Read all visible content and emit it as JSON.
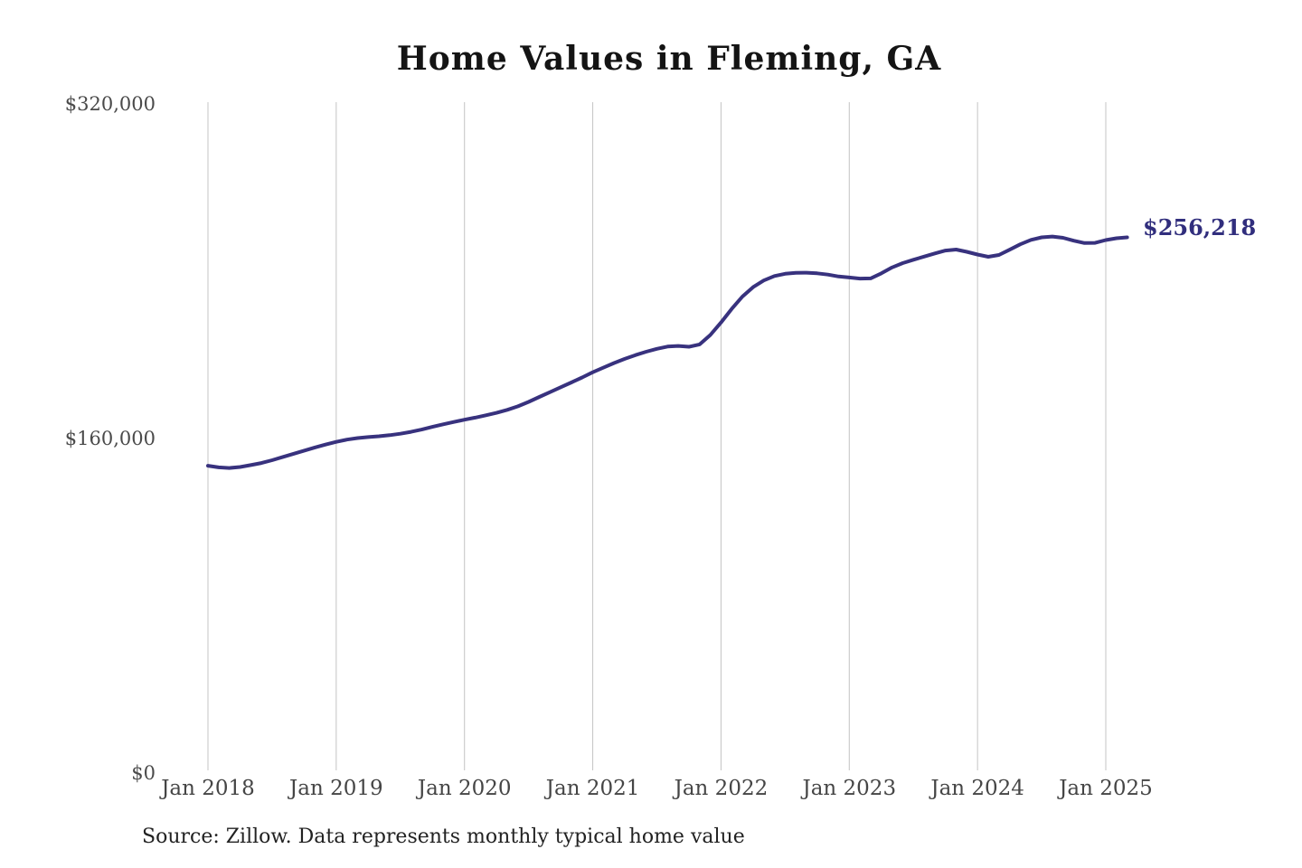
{
  "chart_data": {
    "type": "line",
    "title": "Home Values in Fleming, GA",
    "source_note": "Source: Zillow. Data represents monthly typical home value",
    "last_value": 256218,
    "last_value_label": "$256,218",
    "x_ticks": [
      "Jan 2018",
      "Jan 2019",
      "Jan 2020",
      "Jan 2021",
      "Jan 2022",
      "Jan 2023",
      "Jan 2024",
      "Jan 2025"
    ],
    "y_ticks": [
      {
        "value": 0,
        "label": "$0"
      },
      {
        "value": 160000,
        "label": "$160,000"
      },
      {
        "value": 320000,
        "label": "$320,000"
      }
    ],
    "ylim": [
      0,
      320000
    ],
    "grid": "vertical-only",
    "legend": "none",
    "series": [
      {
        "name": "Monthly typical home value",
        "start_month": "2018-01",
        "end_month": "2025-03",
        "values": [
          147000,
          146200,
          145900,
          146400,
          147300,
          148300,
          149600,
          151200,
          152700,
          154200,
          155700,
          157100,
          158400,
          159500,
          160200,
          160700,
          161100,
          161600,
          162300,
          163200,
          164300,
          165600,
          166800,
          167900,
          169000,
          170000,
          171100,
          172300,
          173700,
          175400,
          177500,
          179900,
          182200,
          184500,
          186800,
          189200,
          191700,
          193900,
          196100,
          198100,
          199900,
          201500,
          202900,
          204000,
          204300,
          203900,
          205000,
          209500,
          215500,
          222000,
          227900,
          232400,
          235600,
          237700,
          238800,
          239200,
          239300,
          239000,
          238400,
          237500,
          237000,
          236500,
          236600,
          239000,
          241800,
          243900,
          245500,
          247000,
          248500,
          249900,
          250400,
          249300,
          248000,
          246900,
          247800,
          250300,
          252900,
          255000,
          256200,
          256600,
          256000,
          254600,
          253500,
          253600,
          254900,
          255800,
          256218
        ]
      }
    ],
    "colors": {
      "line": "#38327e",
      "end_label": "#312e7d",
      "gridline": "#c4c4c4",
      "axis_text": "#4a4a4a",
      "title_text": "#141414",
      "source_text": "#222222",
      "background": "#ffffff"
    }
  }
}
